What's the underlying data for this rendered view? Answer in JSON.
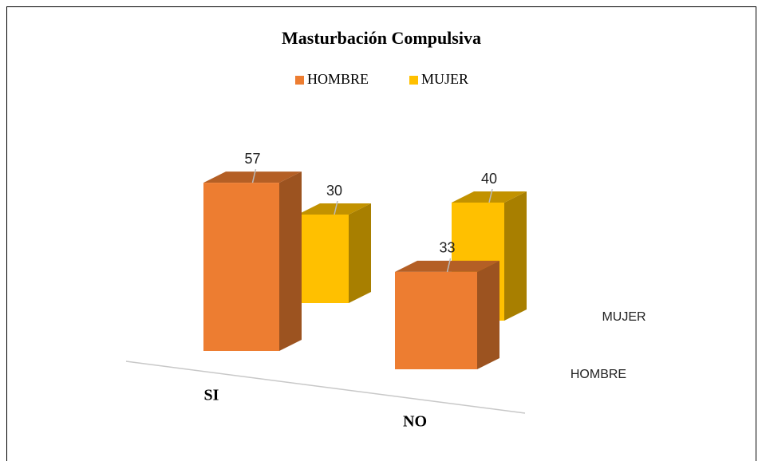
{
  "chart_data": {
    "type": "bar3d",
    "title": "Masturbación Compulsiva",
    "categories": [
      "SI",
      "NO"
    ],
    "series": [
      {
        "name": "HOMBRE",
        "color": "#ED7D31",
        "values": [
          57,
          33
        ]
      },
      {
        "name": "MUJER",
        "color": "#FFC000",
        "values": [
          30,
          40
        ]
      }
    ]
  }
}
